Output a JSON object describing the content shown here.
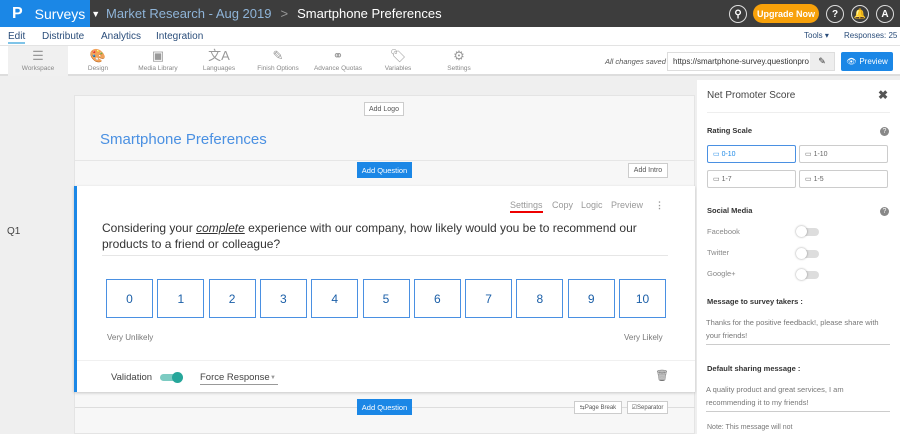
{
  "header": {
    "logo": "P",
    "app": "Surveys",
    "breadcrumb_parent": "Market Research - Aug 2019",
    "breadcrumb_sep": ">",
    "breadcrumb_current": "Smartphone Preferences",
    "upgrade": "Upgrade Now",
    "help": "?",
    "avatar": "A"
  },
  "nav": {
    "tabs": [
      "Edit",
      "Distribute",
      "Analytics",
      "Integration"
    ],
    "tools": "Tools ▾",
    "responses": "Responses: 25"
  },
  "toolbar": {
    "items": [
      {
        "label": "Workspace",
        "icon": "☰"
      },
      {
        "label": "Design",
        "icon": "🎨"
      },
      {
        "label": "Media Library",
        "icon": "▣"
      },
      {
        "label": "Languages",
        "icon": "文A"
      },
      {
        "label": "Finish Options",
        "icon": "✎"
      },
      {
        "label": "Advance Quotas",
        "icon": "⚭"
      },
      {
        "label": "Variables",
        "icon": "🏷"
      },
      {
        "label": "Settings",
        "icon": "⚙"
      }
    ],
    "saved": "All changes saved",
    "url": "https://smartphone-survey.questionpro",
    "preview": "Preview"
  },
  "survey": {
    "add_logo": "Add Logo",
    "title": "Smartphone Preferences",
    "add_question": "Add Question",
    "add_intro": "Add Intro",
    "page_break": "Page Break",
    "separator": "Separator"
  },
  "question": {
    "number": "Q1",
    "actions": [
      "Settings",
      "Copy",
      "Logic",
      "Preview"
    ],
    "text_before": "Considering your ",
    "text_em": "complete",
    "text_after": " experience with our company, how likely would you be to recommend our products to a friend or colleague?",
    "scale": [
      "0",
      "1",
      "2",
      "3",
      "4",
      "5",
      "6",
      "7",
      "8",
      "9",
      "10"
    ],
    "low_label": "Very Unlikely",
    "high_label": "Very Likely",
    "validation": "Validation",
    "validation_on": true,
    "force_response": "Force Response"
  },
  "panel": {
    "title": "Net Promoter Score",
    "rating_scale": "Rating Scale",
    "scales": [
      "0-10",
      "1-10",
      "1-7",
      "1-5"
    ],
    "selected_scale": "0-10",
    "social_media": "Social Media",
    "networks": [
      {
        "name": "Facebook",
        "on": false
      },
      {
        "name": "Twitter",
        "on": false
      },
      {
        "name": "Google+",
        "on": false
      }
    ],
    "message_label": "Message to survey takers :",
    "message": "Thanks for the positive feedback!, please share with your friends!",
    "sharing_label": "Default sharing message :",
    "sharing": "A quality product and great services, I am recommending it to my friends!",
    "note": "Note: This message will not"
  },
  "colors": {
    "accent": "#1b87e6",
    "upgrade": "#f7a10a",
    "toggle_on": "#26a69a"
  }
}
